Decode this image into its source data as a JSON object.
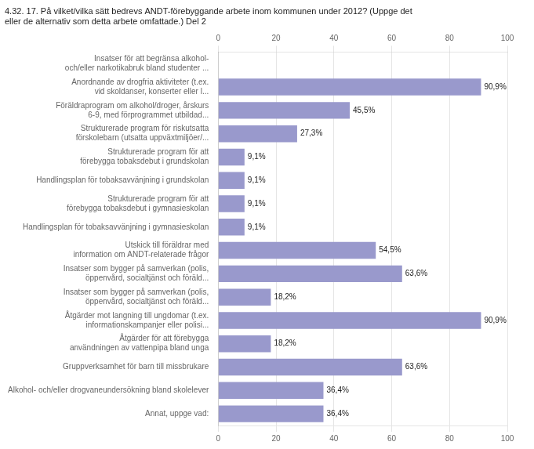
{
  "chart_data": {
    "type": "bar",
    "orientation": "horizontal",
    "title": "4.32. 17. På vilket/vilka sätt bedrevs ANDT-förebyggande arbete inom kommunen under 2012? (Uppge det\neller de alternativ som detta arbete omfattade.) Del 2",
    "categories": [
      "Insatser för att begränsa alkohol-\noch/eller narkotikabruk bland studenter ...",
      "Anordnande av drogfria aktiviteter (t.ex.\nvid skoldanser, konserter eller l...",
      "Föräldraprogram om alkohol/droger, årskurs\n6-9, med förprogrammet utbildad...",
      "Strukturerade program för riskutsatta\nförskolebarn (utsatta uppväxtmiljöer/...",
      "Strukturerade program för att\nförebygga tobaksdebut i grundskolan",
      "Handlingsplan för tobaksavvänjning i grundskolan",
      "Strukturerade program för att\nförebygga tobaksdebut i gymnasieskolan",
      "Handlingsplan för tobaksavvänjning i gymnasieskolan",
      "Utskick till föräldrar med\ninformation om ANDT-relaterade frågor",
      "Insatser som bygger på samverkan (polis,\nöppenvård, socialtjänst och föräld...",
      "Insatser som bygger på samverkan (polis,\nöppenvård, socialtjänst och föräld...",
      "Åtgärder mot langning till ungdomar (t.ex.\ninformationskampanjer eller polisi...",
      "Åtgärder för att förebygga\nanvändningen av vattenpipa bland unga",
      "Gruppverksamhet för barn till missbrukare",
      "Alkohol- och/eller drogvaneundersökning bland skolelever",
      "Annat, uppge vad:"
    ],
    "values": [
      0.0,
      90.9,
      45.5,
      27.3,
      9.1,
      9.1,
      9.1,
      9.1,
      54.5,
      63.6,
      18.2,
      90.9,
      18.2,
      63.6,
      36.4,
      36.4
    ],
    "value_labels": [
      null,
      "90,9%",
      "45,5%",
      "27,3%",
      "9,1%",
      "9,1%",
      "9,1%",
      "9,1%",
      "54,5%",
      "63,6%",
      "18,2%",
      "90,9%",
      "18,2%",
      "63,6%",
      "36,4%",
      "36,4%"
    ],
    "color": "#9999cc",
    "xlim": [
      0,
      100
    ],
    "xticks": [
      0,
      20,
      40,
      60,
      80,
      100
    ],
    "grid": true,
    "data_labels": true
  }
}
